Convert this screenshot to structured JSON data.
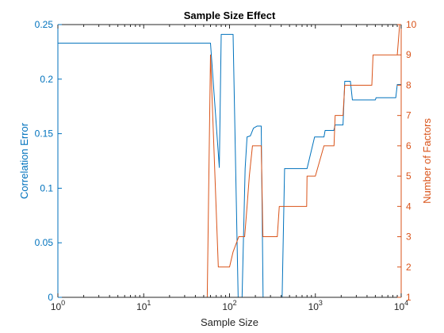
{
  "chart_data": {
    "type": "line",
    "title": "Sample Size Effect",
    "xlabel": "Sample Size",
    "ylabel_left": "Correlation Error",
    "ylabel_right": "Number of Factors",
    "x_scale": "log",
    "xlim": [
      1,
      10000
    ],
    "ylim_left": [
      0,
      0.25
    ],
    "ylim_right": [
      1,
      10
    ],
    "x_ticks": [
      {
        "value": 1,
        "base": "10",
        "exp": "0"
      },
      {
        "value": 10,
        "base": "10",
        "exp": "1"
      },
      {
        "value": 100,
        "base": "10",
        "exp": "2"
      },
      {
        "value": 1000,
        "base": "10",
        "exp": "3"
      },
      {
        "value": 10000,
        "base": "10",
        "exp": "4"
      }
    ],
    "y_ticks_left": [
      "0",
      "0.05",
      "0.1",
      "0.15",
      "0.2",
      "0.25"
    ],
    "y_ticks_right": [
      "1",
      "2",
      "3",
      "4",
      "5",
      "6",
      "7",
      "8",
      "9",
      "10"
    ],
    "grid": false,
    "colors": {
      "left": "#0072BD",
      "right": "#D95319",
      "axes": "#262626"
    },
    "series": [
      {
        "axis": "left",
        "color": "#0072BD",
        "x": [
          1,
          55,
          60,
          76,
          80,
          103,
          110,
          126,
          140,
          152,
          160,
          175,
          190,
          210,
          234,
          246,
          265,
          280,
          318,
          360,
          380,
          410,
          438,
          790,
          800,
          980,
          1000,
          1260,
          1300,
          1640,
          1700,
          2100,
          2200,
          2560,
          2700,
          5000,
          5100,
          8650,
          9000,
          9600,
          10000
        ],
        "y": [
          0.233,
          0.233,
          0.233,
          0.119,
          0.241,
          0.241,
          0.241,
          0.0,
          0.0,
          0.118,
          0.147,
          0.148,
          0.155,
          0.157,
          0.157,
          0.0,
          0.0,
          0.0,
          0.0,
          0.0,
          0.0,
          0.0,
          0.118,
          0.118,
          0.118,
          0.147,
          0.147,
          0.147,
          0.153,
          0.153,
          0.158,
          0.158,
          0.198,
          0.198,
          0.181,
          0.181,
          0.183,
          0.183,
          0.195,
          0.195,
          0.195
        ]
      },
      {
        "axis": "right",
        "color": "#D95319",
        "x": [
          1,
          55,
          60,
          74,
          80,
          100,
          110,
          128,
          140,
          150,
          160,
          170,
          185,
          205,
          234,
          245,
          260,
          280,
          318,
          360,
          380,
          415,
          440,
          792,
          800,
          980,
          1000,
          1260,
          1300,
          1650,
          1700,
          2100,
          2200,
          2550,
          2700,
          4550,
          4700,
          8650,
          9000,
          9600,
          10000
        ],
        "y": [
          1,
          1,
          9,
          2,
          2,
          2,
          2.5,
          3,
          3,
          3,
          4,
          5,
          6,
          6,
          6,
          3,
          3,
          3,
          3,
          3,
          4,
          4,
          4,
          4,
          5,
          5,
          5,
          6,
          6,
          6,
          7,
          7,
          8,
          8,
          8,
          8,
          9,
          9,
          9,
          10,
          10
        ]
      }
    ]
  }
}
